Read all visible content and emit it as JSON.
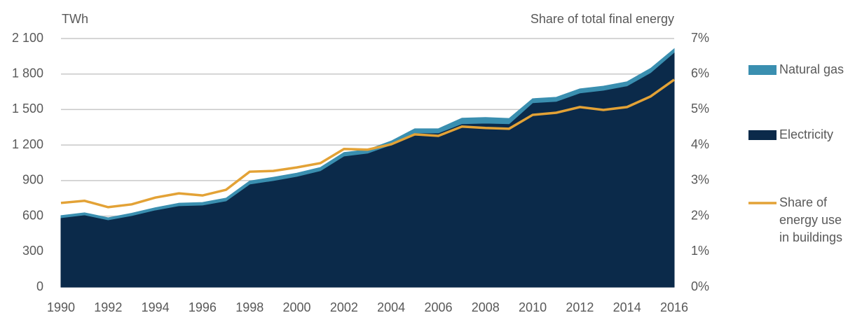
{
  "chart_data": {
    "type": "area",
    "y_label": "TWh",
    "y2_label": "Share of total final energy",
    "x": [
      1990,
      1991,
      1992,
      1993,
      1994,
      1995,
      1996,
      1997,
      1998,
      1999,
      2000,
      2001,
      2002,
      2003,
      2004,
      2005,
      2006,
      2007,
      2008,
      2009,
      2010,
      2011,
      2012,
      2013,
      2014,
      2015,
      2016
    ],
    "series": [
      {
        "name": "Electricity",
        "color": "#0b2a4a",
        "stacked": true,
        "values": [
          586,
          610,
          568,
          604,
          651,
          687,
          693,
          728,
          870,
          900,
          935,
          983,
          1107,
          1131,
          1202,
          1302,
          1302,
          1380,
          1385,
          1380,
          1557,
          1569,
          1640,
          1663,
          1700,
          1812,
          1983
        ]
      },
      {
        "name": "Natural gas",
        "color": "#3a8fb0",
        "stacked": true,
        "values": [
          18,
          18,
          18,
          20,
          20,
          22,
          22,
          24,
          26,
          28,
          28,
          28,
          30,
          30,
          32,
          36,
          36,
          47,
          48,
          45,
          35,
          35,
          35,
          35,
          35,
          36,
          30
        ]
      },
      {
        "name": "Share of energy use in buildings",
        "color": "#e3a236",
        "axis": "y2",
        "type": "line",
        "values": [
          2.37,
          2.43,
          2.25,
          2.33,
          2.52,
          2.64,
          2.58,
          2.74,
          3.25,
          3.27,
          3.37,
          3.49,
          3.89,
          3.87,
          4.02,
          4.3,
          4.26,
          4.52,
          4.48,
          4.46,
          4.85,
          4.91,
          5.07,
          4.99,
          5.07,
          5.37,
          5.84
        ]
      }
    ],
    "xlim": [
      1990,
      2016
    ],
    "xticks": [
      1990,
      1992,
      1994,
      1996,
      1998,
      2000,
      2002,
      2004,
      2006,
      2008,
      2010,
      2012,
      2014,
      2016
    ],
    "ylim": [
      0,
      2100
    ],
    "yticks": [
      0,
      300,
      600,
      900,
      {
        "value": 1200,
        "label": "1 200"
      },
      {
        "value": 1500,
        "label": "1 500"
      },
      {
        "value": 1800,
        "label": "1 800"
      },
      {
        "value": 2100,
        "label": "2 100"
      }
    ],
    "y2lim": [
      0,
      7
    ],
    "y2ticks": [
      {
        "value": 0,
        "label": "0%"
      },
      {
        "value": 1,
        "label": "1%"
      },
      {
        "value": 2,
        "label": "2%"
      },
      {
        "value": 3,
        "label": "3%"
      },
      {
        "value": 4,
        "label": "4%"
      },
      {
        "value": 5,
        "label": "5%"
      },
      {
        "value": 6,
        "label": "6%"
      },
      {
        "value": 7,
        "label": "7%"
      }
    ],
    "grid": true,
    "legend": "right"
  }
}
